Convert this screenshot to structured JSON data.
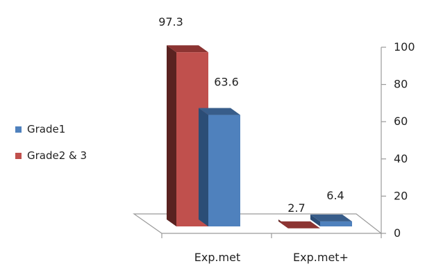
{
  "chart_data": {
    "type": "bar",
    "categories": [
      "Exp.met",
      "Exp.met+"
    ],
    "series": [
      {
        "name": "Grade2 & 3",
        "values": [
          97.3,
          2.7
        ],
        "color": "#c0504d",
        "color_side": "#5a2220",
        "color_top": "#8c3432"
      },
      {
        "name": "Grade1",
        "values": [
          63.6,
          6.4
        ],
        "color": "#4f81bd",
        "color_side": "#2b4d76",
        "color_top": "#385d8a"
      }
    ],
    "data_labels": [
      "97.3",
      "63.6",
      "2.7",
      "6.4"
    ],
    "y_ticks": [
      "0",
      "20",
      "40",
      "60",
      "80",
      "100"
    ],
    "ylim": [
      0,
      100
    ],
    "y_axis_side": "right",
    "grid": false,
    "legend_position": "left",
    "legend": [
      "Grade1",
      "Grade2 & 3"
    ],
    "title": "",
    "xlabel": "",
    "ylabel": ""
  }
}
